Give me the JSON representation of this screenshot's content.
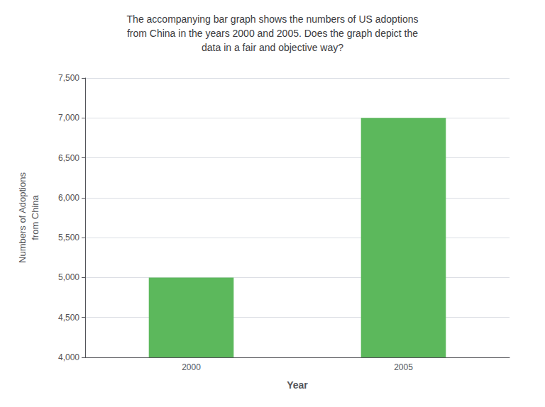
{
  "chart_data": {
    "type": "bar",
    "title": "The accompanying bar graph shows the numbers of US adoptions\nfrom China in the years 2000 and 2005. Does the graph depict the\ndata in a fair and objective way?",
    "categories": [
      "2000",
      "2005"
    ],
    "values": [
      5000,
      7000
    ],
    "color": "#5cb85c",
    "xlabel": "Year",
    "ylabel": "Numbers of Adoptions\nfrom China",
    "ylim": [
      4000,
      7500
    ],
    "yticks": [
      4000,
      4500,
      5000,
      5500,
      6000,
      6500,
      7000,
      7500
    ],
    "grid": true
  }
}
